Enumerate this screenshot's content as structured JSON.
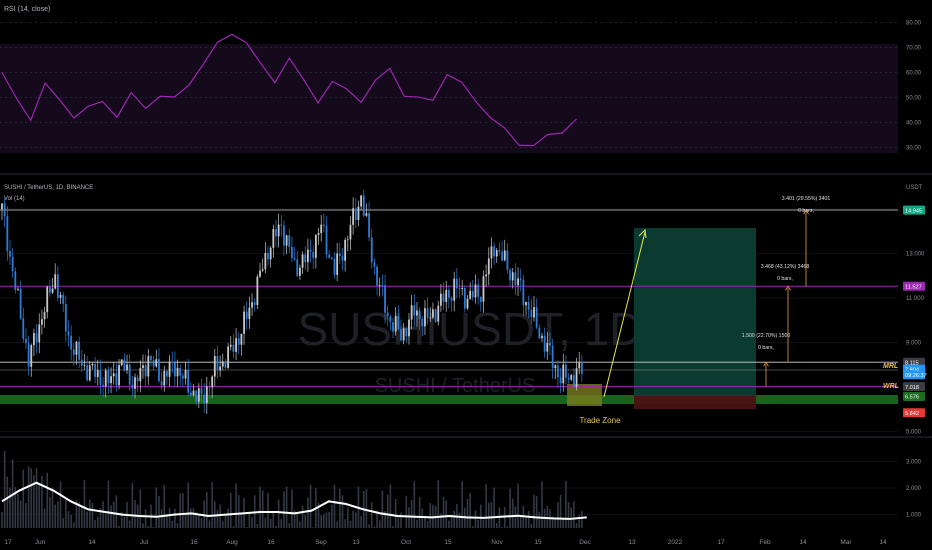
{
  "colors": {
    "background": "#000000",
    "grid": "#1c1f26",
    "rsi_line": "#9c27b0",
    "rsi_band": "#1a0f24",
    "candle_up": "#c8c8c8",
    "candle_down": "#2e7cd6",
    "support_band": "#1b6e1f",
    "resistance_line": "#9c27b0",
    "trade_zone": "#6b6b1a",
    "target_zone": "#0c3d33",
    "stop_zone": "#3d1010",
    "projection_arrow": "#e6e65a",
    "target_arrows": "#d08a3a",
    "volume_ma": "#ffffff",
    "volume_bars": "#343844",
    "text": "#b2b5be",
    "axis_text": "#8a8d96"
  },
  "rsi_panel": {
    "title": "RSI (14, close)",
    "y_ticks": [
      "80.00",
      "70.00",
      "60.00",
      "50.00",
      "40.00",
      "30.00"
    ]
  },
  "main_panel": {
    "title": "SUSHI / TetherUS, 1D, BINANCE",
    "sub_title": "Vol (14)",
    "watermark_symbol": "SUSHIUSDT, 1D",
    "watermark_name": "SUSHI / TetherUS",
    "trade_zone_label": "Trade Zone",
    "mrl_label": "MRL",
    "wrl_label": "WRL",
    "axis_unit": "USDT",
    "y_ticks": [
      "15.000",
      "13.000",
      "11.000",
      "9.000",
      "5.000"
    ],
    "target_annotations": [
      {
        "value": "1.500 (22.70%) 1500",
        "bars": "0 bars,"
      },
      {
        "value": "3.468 (43.12%) 3468",
        "bars": "0 bars,"
      },
      {
        "value": "3.401 (29.55%) 3401",
        "bars": "0 bars,"
      }
    ],
    "price_tags": [
      {
        "text": "14.954",
        "color": "#4a4d55",
        "price": 14.954
      },
      {
        "text": "14.945",
        "color": "#0fa882",
        "price": 14.945
      },
      {
        "text": "11.527",
        "color": "#9c27b0",
        "price": 11.527
      },
      {
        "text": "8.115",
        "color": "#3a3d45",
        "price": 8.115
      },
      {
        "text": "7.804",
        "color": "#2196f3",
        "price": 7.804
      },
      {
        "text": "09:26:37",
        "color": "#2196f3",
        "price": 7.55
      },
      {
        "text": "7.018",
        "color": "#3a3d45",
        "price": 7.018
      },
      {
        "text": "6.576",
        "color": "#1b6e1f",
        "price": 6.576
      },
      {
        "text": "5.842",
        "color": "#e53935",
        "price": 5.842
      }
    ]
  },
  "volume_panel": {
    "y_ticks": [
      "3.000",
      "2.000",
      "1.000"
    ]
  },
  "x_axis": {
    "labels": [
      "17",
      "Jun",
      "14",
      "Jul",
      "16",
      "Aug",
      "16",
      "Sep",
      "13",
      "Oct",
      "15",
      "Nov",
      "15",
      "Dec",
      "13",
      "2022",
      "17",
      "Feb",
      "14",
      "Mar",
      "14"
    ]
  },
  "chart_data": {
    "type": "candlestick",
    "title": "SUSHI / TetherUS, 1D, BINANCE",
    "x_range": [
      "May 17 2021",
      "Mar 14 2022"
    ],
    "price_range": [
      4.8,
      16.3
    ],
    "levels": {
      "resistance_top": 14.954,
      "target": 14.945,
      "resistance_mid": 11.527,
      "mrl": 8.115,
      "wrl": 7.018,
      "support": 6.576,
      "stop": 5.842,
      "last_price": 7.804
    },
    "price_path": [
      [
        0,
        15.0
      ],
      [
        5,
        11.5
      ],
      [
        10,
        8.2
      ],
      [
        15,
        10.2
      ],
      [
        20,
        12.0
      ],
      [
        25,
        9.2
      ],
      [
        30,
        8.0
      ],
      [
        35,
        7.6
      ],
      [
        40,
        7.2
      ],
      [
        45,
        8.0
      ],
      [
        50,
        7.1
      ],
      [
        55,
        8.3
      ],
      [
        60,
        7.4
      ],
      [
        65,
        8.0
      ],
      [
        70,
        7.0
      ],
      [
        75,
        6.4
      ],
      [
        80,
        7.8
      ],
      [
        85,
        8.4
      ],
      [
        90,
        9.5
      ],
      [
        95,
        11.2
      ],
      [
        100,
        13.2
      ],
      [
        105,
        14.3
      ],
      [
        110,
        12.4
      ],
      [
        115,
        12.8
      ],
      [
        120,
        14.2
      ],
      [
        125,
        12.2
      ],
      [
        130,
        13.8
      ],
      [
        135,
        15.6
      ],
      [
        140,
        12.3
      ],
      [
        145,
        10.2
      ],
      [
        150,
        9.3
      ],
      [
        155,
        10.4
      ],
      [
        160,
        10.0
      ],
      [
        165,
        10.8
      ],
      [
        170,
        11.5
      ],
      [
        175,
        11.0
      ],
      [
        180,
        11.3
      ],
      [
        185,
        13.4
      ],
      [
        190,
        12.4
      ],
      [
        195,
        11.4
      ],
      [
        200,
        10.0
      ],
      [
        205,
        8.7
      ],
      [
        210,
        7.4
      ],
      [
        215,
        7.5
      ],
      [
        218,
        7.8
      ]
    ],
    "rsi_path": [
      [
        0,
        60
      ],
      [
        5,
        48
      ],
      [
        10,
        43
      ],
      [
        15,
        55
      ],
      [
        20,
        48
      ],
      [
        25,
        44
      ],
      [
        30,
        45
      ],
      [
        35,
        48
      ],
      [
        40,
        44
      ],
      [
        45,
        50
      ],
      [
        50,
        46
      ],
      [
        55,
        52
      ],
      [
        60,
        48
      ],
      [
        65,
        56
      ],
      [
        70,
        64
      ],
      [
        75,
        70
      ],
      [
        80,
        77
      ],
      [
        85,
        72
      ],
      [
        90,
        62
      ],
      [
        95,
        58
      ],
      [
        100,
        65
      ],
      [
        105,
        56
      ],
      [
        110,
        50
      ],
      [
        115,
        55
      ],
      [
        120,
        53
      ],
      [
        125,
        50
      ],
      [
        130,
        55
      ],
      [
        135,
        62
      ],
      [
        140,
        52
      ],
      [
        145,
        48
      ],
      [
        150,
        50
      ],
      [
        155,
        60
      ],
      [
        160,
        54
      ],
      [
        165,
        50
      ],
      [
        170,
        42
      ],
      [
        175,
        36
      ],
      [
        180,
        33
      ],
      [
        185,
        30
      ],
      [
        190,
        34
      ],
      [
        195,
        38
      ],
      [
        200,
        40
      ]
    ],
    "volume_ma_path": [
      [
        0,
        1.5
      ],
      [
        4,
        1.9
      ],
      [
        8,
        2.2
      ],
      [
        12,
        1.9
      ],
      [
        16,
        1.5
      ],
      [
        20,
        1.2
      ],
      [
        24,
        1.1
      ],
      [
        28,
        1.0
      ],
      [
        32,
        0.95
      ],
      [
        36,
        0.92
      ],
      [
        40,
        1.0
      ],
      [
        44,
        1.05
      ],
      [
        48,
        0.95
      ],
      [
        52,
        1.0
      ],
      [
        56,
        1.05
      ],
      [
        60,
        1.1
      ],
      [
        64,
        1.1
      ],
      [
        68,
        1.05
      ],
      [
        72,
        1.15
      ],
      [
        76,
        1.5
      ],
      [
        80,
        1.4
      ],
      [
        84,
        1.2
      ],
      [
        88,
        1.05
      ],
      [
        92,
        0.95
      ],
      [
        96,
        0.92
      ],
      [
        100,
        0.9
      ],
      [
        104,
        0.95
      ],
      [
        108,
        0.9
      ],
      [
        112,
        0.88
      ],
      [
        116,
        0.92
      ],
      [
        120,
        0.96
      ],
      [
        124,
        0.9
      ],
      [
        128,
        0.86
      ],
      [
        132,
        0.84
      ],
      [
        136,
        0.9
      ]
    ]
  }
}
